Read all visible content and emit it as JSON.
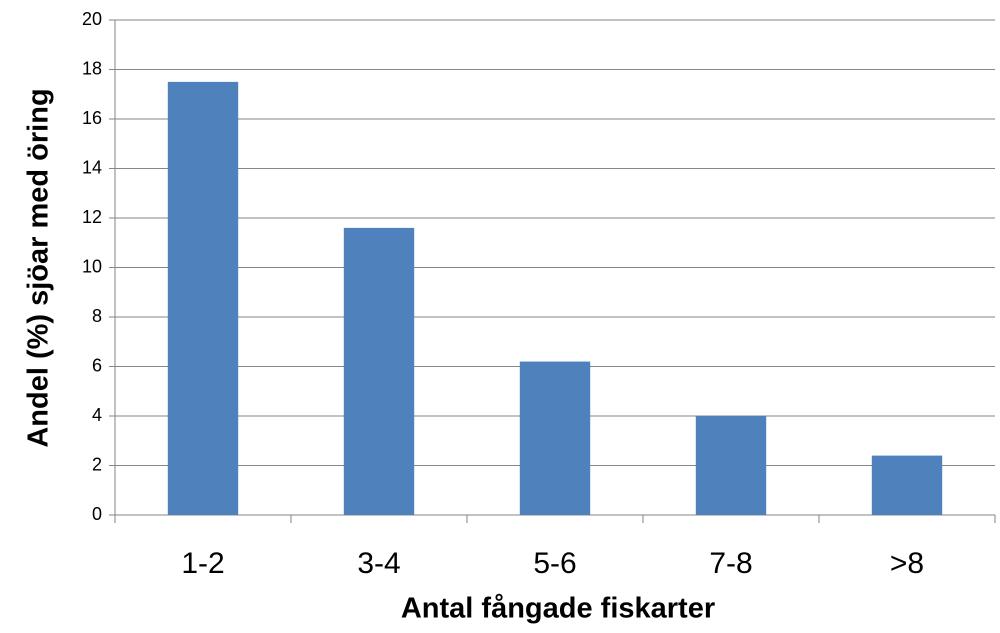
{
  "chart_data": {
    "type": "bar",
    "categories": [
      "1-2",
      "3-4",
      "5-6",
      "7-8",
      ">8"
    ],
    "values": [
      17.5,
      11.6,
      6.2,
      4.0,
      2.4
    ],
    "color": "#4f81bd",
    "xlabel": "Antal fångade fiskarter",
    "ylabel": "Andel (%) sjöar med öring",
    "ylim": [
      0,
      20
    ],
    "yticks": [
      0,
      2,
      4,
      6,
      8,
      10,
      12,
      14,
      16,
      18,
      20
    ],
    "grid": true
  }
}
